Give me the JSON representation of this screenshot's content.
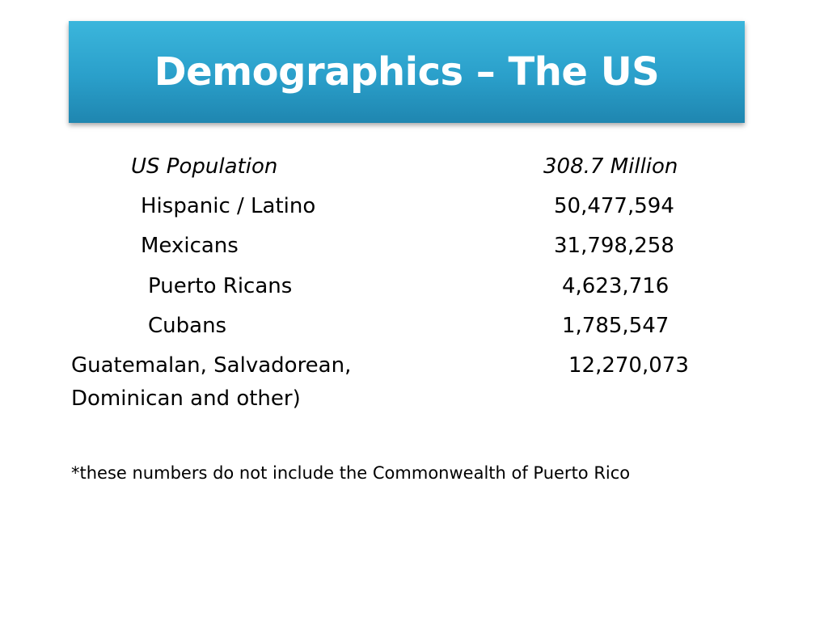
{
  "slide": {
    "title": "Demographics – The US",
    "rows": [
      {
        "label": "US Population",
        "value": "308.7 Million"
      },
      {
        "label": "Hispanic / Latino",
        "value": "50,477,594"
      },
      {
        "label": "Mexicans",
        "value": "31,798,258"
      },
      {
        "label": "Puerto Ricans",
        "value": "4,623,716"
      },
      {
        "label": "Cubans",
        "value": "1,785,547"
      },
      {
        "label_line1": "Guatemalan, Salvadorean,",
        "label_line2": "Dominican and other)",
        "value": "12,270,073"
      }
    ],
    "footnote": "*these numbers do not include the Commonwealth of Puerto Rico",
    "colors": {
      "title_bar": "#2a9fca",
      "title_text": "#ffffff"
    }
  }
}
